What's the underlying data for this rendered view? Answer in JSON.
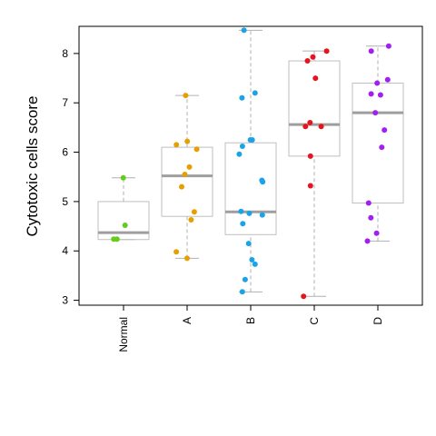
{
  "chart_data": {
    "type": "box",
    "title": "",
    "xlabel": "",
    "ylabel": "Cytotoxic cells score",
    "ylim": [
      2.9,
      8.55
    ],
    "yticks": [
      3,
      4,
      5,
      6,
      7,
      8
    ],
    "categories": [
      "Normal",
      "A",
      "B",
      "C",
      "D"
    ],
    "colors": [
      "#66cc1a",
      "#e69f00",
      "#1aa3e6",
      "#e6141f",
      "#a020f0"
    ],
    "box_color": "#bfbfbf",
    "median_color": "#9e9e9e",
    "whisker_color": "#b0b0b0",
    "boxes": [
      {
        "category": "Normal",
        "whisker_low": 4.23,
        "q1": 4.23,
        "median": 4.37,
        "q3": 5.0,
        "whisker_high": 5.48
      },
      {
        "category": "A",
        "whisker_low": 3.85,
        "q1": 4.7,
        "median": 5.52,
        "q3": 6.1,
        "whisker_high": 7.15
      },
      {
        "category": "B",
        "whisker_low": 3.17,
        "q1": 4.33,
        "median": 4.79,
        "q3": 6.19,
        "whisker_high": 8.47
      },
      {
        "category": "C",
        "whisker_low": 3.08,
        "q1": 5.92,
        "median": 6.56,
        "q3": 7.85,
        "whisker_high": 8.05
      },
      {
        "category": "D",
        "whisker_low": 4.2,
        "q1": 4.97,
        "median": 6.8,
        "q3": 7.4,
        "whisker_high": 8.15
      }
    ],
    "points": [
      {
        "category": "Normal",
        "values": [
          5.48,
          4.52,
          4.24,
          4.24
        ]
      },
      {
        "category": "A",
        "values": [
          7.15,
          6.22,
          6.15,
          6.06,
          5.7,
          5.55,
          5.3,
          4.79,
          4.63,
          3.98,
          3.85
        ]
      },
      {
        "category": "B",
        "values": [
          8.47,
          7.2,
          7.1,
          6.25,
          6.25,
          6.12,
          5.96,
          5.43,
          5.4,
          4.8,
          4.76,
          4.73,
          4.55,
          4.15,
          3.82,
          3.73,
          3.42,
          3.17
        ]
      },
      {
        "category": "C",
        "values": [
          8.05,
          7.93,
          7.85,
          7.5,
          6.6,
          6.52,
          6.52,
          5.92,
          5.32,
          3.08
        ]
      },
      {
        "category": "D",
        "values": [
          8.15,
          8.05,
          7.47,
          7.4,
          7.18,
          7.16,
          6.8,
          6.45,
          6.1,
          4.97,
          4.67,
          4.36,
          4.2
        ]
      }
    ]
  }
}
